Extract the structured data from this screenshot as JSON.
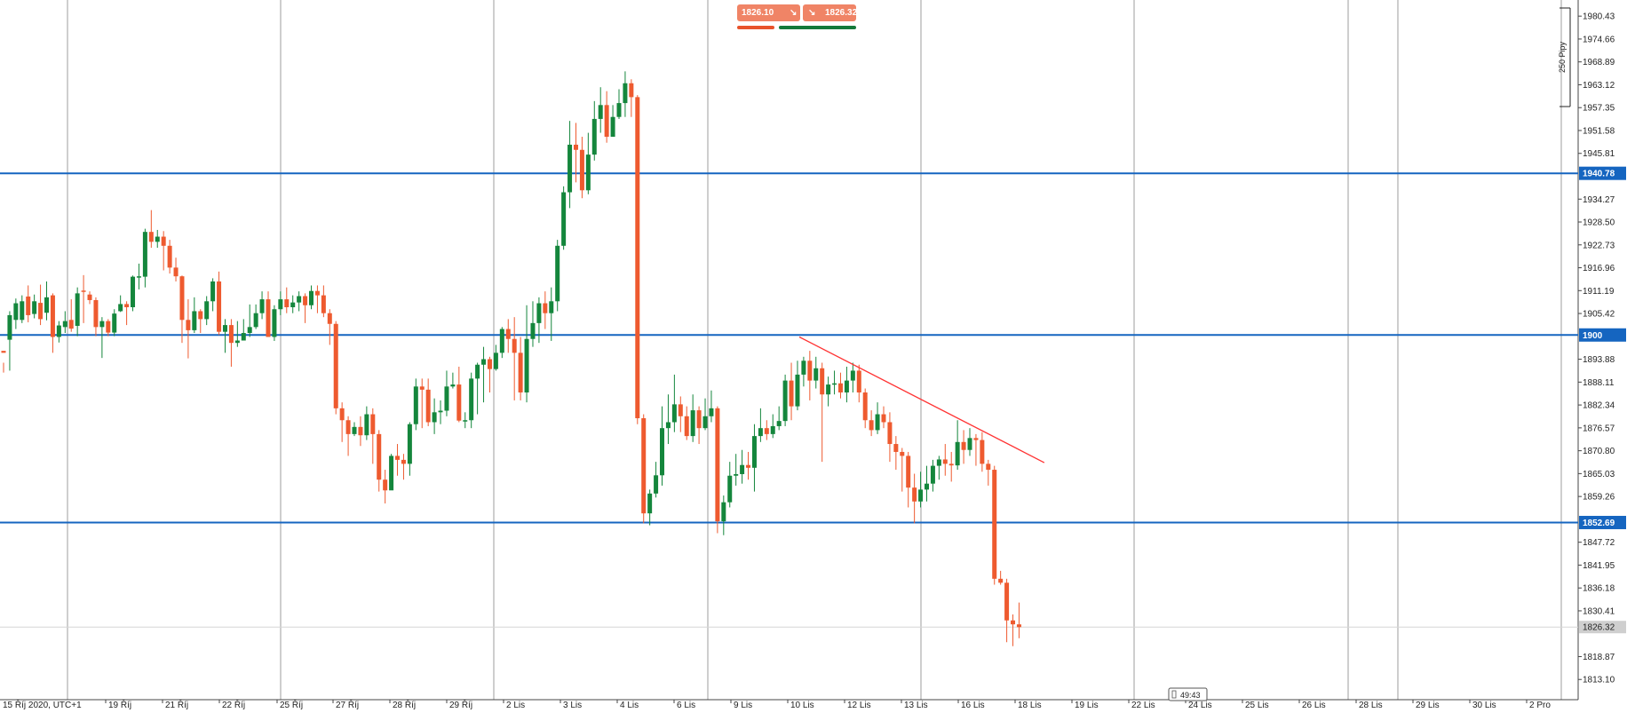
{
  "colors": {
    "bull": "#14863c",
    "bear": "#ee5a2f",
    "level_line": "#1565c0",
    "trend_line": "#ff3333",
    "grid": "#9e9e9e",
    "current_price_bg": "#cfcfcf"
  },
  "trade_panel": {
    "sell_price": "1826.10",
    "buy_price": "1826.32",
    "sell_icon": "arrow-down-right-icon",
    "buy_icon": "arrow-down-right-icon"
  },
  "timer": "49:43",
  "range_label": "250 Pipy",
  "chart_data": {
    "type": "candlestick",
    "ylim": [
      1808.0,
      1984.5
    ],
    "y_ticks": [
      "1980.43",
      "1974.66",
      "1968.89",
      "1963.12",
      "1957.35",
      "1951.58",
      "1945.81",
      "1934.27",
      "1928.50",
      "1922.73",
      "1916.96",
      "1911.19",
      "1905.42",
      "1893.88",
      "1888.11",
      "1882.34",
      "1876.57",
      "1870.80",
      "1865.03",
      "1859.26",
      "1847.72",
      "1841.95",
      "1836.18",
      "1830.41",
      "1818.87",
      "1813.10"
    ],
    "x_ticks": [
      "15 Říj 2020, UTC+1",
      "19 Říj",
      "21 Říj",
      "22 Říj",
      "25 Říj",
      "27 Říj",
      "28 Říj",
      "29 Říj",
      "2 Lis",
      "3 Lis",
      "4 Lis",
      "6 Lis",
      "9 Lis",
      "10 Lis",
      "12 Lis",
      "13 Lis",
      "16 Lis",
      "18 Lis",
      "19 Lis",
      "22 Lis",
      "24 Lis",
      "25 Lis",
      "26 Lis",
      "28 Lis",
      "29 Lis",
      "30 Lis",
      "2 Pro"
    ],
    "levels": [
      {
        "value": 1940.78,
        "label": "1940.78"
      },
      {
        "value": 1900.0,
        "label": "1900"
      },
      {
        "value": 1852.69,
        "label": "1852.69"
      }
    ],
    "current_price": {
      "value": 1826.32,
      "label": "1826.32"
    },
    "trendline": {
      "from": [
        129.3,
        1899.5
      ],
      "to": [
        169.1,
        1867.8
      ]
    },
    "candles": [
      [
        1896.0,
        1895.5,
        1893.0,
        1890.5
      ],
      [
        1898.8,
        1905.0,
        1906.0,
        1891.0
      ],
      [
        1903.8,
        1908.0,
        1909.2,
        1901.5
      ],
      [
        1903.8,
        1908.5,
        1910.0,
        1903.0
      ],
      [
        1909.7,
        1905.0,
        1912.5,
        1903.2
      ],
      [
        1905.3,
        1908.5,
        1910.2,
        1904.2
      ],
      [
        1908.1,
        1904.0,
        1912.7,
        1902.5
      ],
      [
        1905.6,
        1909.5,
        1913.5,
        1903.7
      ],
      [
        1910.0,
        1899.5,
        1910.5,
        1895.5
      ],
      [
        1899.5,
        1902.4,
        1903.5,
        1898.1
      ],
      [
        1902.0,
        1903.5,
        1906.0,
        1900.5
      ],
      [
        1903.8,
        1901.6,
        1909.0,
        1900.8
      ],
      [
        1902.3,
        1910.5,
        1912.0,
        1899.7
      ],
      [
        1911.2,
        1911.0,
        1915.1,
        1903.0
      ],
      [
        1910.2,
        1908.8,
        1911.0,
        1907.8
      ],
      [
        1908.8,
        1902.0,
        1909.5,
        1899.7
      ],
      [
        1902.0,
        1903.5,
        1904.5,
        1894.2
      ],
      [
        1903.5,
        1900.6,
        1904.0,
        1899.7
      ],
      [
        1900.6,
        1905.4,
        1906.5,
        1899.7
      ],
      [
        1906.0,
        1907.8,
        1910.0,
        1905.8
      ],
      [
        1907.8,
        1907.0,
        1908.5,
        1902.5
      ],
      [
        1907.0,
        1914.7,
        1915.0,
        1906.0
      ],
      [
        1914.5,
        1914.8,
        1918.0,
        1911.5
      ],
      [
        1914.7,
        1926.0,
        1926.8,
        1912.0
      ],
      [
        1926.0,
        1923.5,
        1931.5,
        1922.0
      ],
      [
        1923.5,
        1924.8,
        1926.5,
        1922.0
      ],
      [
        1924.8,
        1922.5,
        1926.2,
        1916.3
      ],
      [
        1922.5,
        1917.0,
        1924.0,
        1915.5
      ],
      [
        1917.0,
        1914.8,
        1919.5,
        1913.5
      ],
      [
        1914.8,
        1903.8,
        1915.0,
        1898.0
      ],
      [
        1903.8,
        1901.2,
        1909.0,
        1894.1
      ],
      [
        1901.2,
        1906.0,
        1909.5,
        1900.5
      ],
      [
        1906.0,
        1904.0,
        1906.5,
        1900.5
      ],
      [
        1904.0,
        1908.5,
        1909.8,
        1902.5
      ],
      [
        1908.5,
        1913.5,
        1914.3,
        1906.0
      ],
      [
        1913.5,
        1900.8,
        1916.0,
        1900.0
      ],
      [
        1900.8,
        1902.5,
        1904.0,
        1895.5
      ],
      [
        1902.5,
        1898.0,
        1904.0,
        1892.0
      ],
      [
        1898.0,
        1898.6,
        1903.5,
        1897.0
      ],
      [
        1898.6,
        1900.5,
        1904.0,
        1899.0
      ],
      [
        1900.5,
        1902.0,
        1907.7,
        1899.5
      ],
      [
        1902.0,
        1905.5,
        1907.7,
        1901.5
      ],
      [
        1905.5,
        1909.0,
        1911.0,
        1904.0
      ],
      [
        1909.0,
        1899.5,
        1911.0,
        1899.5
      ],
      [
        1899.5,
        1906.5,
        1907.5,
        1898.5
      ],
      [
        1906.5,
        1909.0,
        1911.0,
        1905.0
      ],
      [
        1909.0,
        1907.0,
        1912.0,
        1905.5
      ],
      [
        1907.0,
        1908.2,
        1910.0,
        1905.5
      ],
      [
        1908.2,
        1909.8,
        1911.0,
        1906.0
      ],
      [
        1909.8,
        1907.5,
        1910.5,
        1903.0
      ],
      [
        1907.5,
        1911.1,
        1912.5,
        1906.5
      ],
      [
        1911.1,
        1910.0,
        1912.5,
        1905.5
      ],
      [
        1910.0,
        1905.5,
        1912.5,
        1904.5
      ],
      [
        1905.5,
        1902.8,
        1906.5,
        1897.5
      ],
      [
        1902.8,
        1881.5,
        1903.5,
        1880.0
      ],
      [
        1881.5,
        1878.5,
        1883.0,
        1873.0
      ],
      [
        1878.5,
        1875.0,
        1879.5,
        1869.5
      ],
      [
        1875.0,
        1876.8,
        1878.0,
        1874.5
      ],
      [
        1876.8,
        1874.7,
        1879.5,
        1872.0
      ],
      [
        1874.7,
        1880.0,
        1882.0,
        1873.5
      ],
      [
        1880.0,
        1875.0,
        1881.5,
        1867.5
      ],
      [
        1875.0,
        1863.5,
        1876.0,
        1860.5
      ],
      [
        1863.5,
        1860.8,
        1866.0,
        1857.5
      ],
      [
        1860.8,
        1869.5,
        1870.0,
        1862.0
      ],
      [
        1869.5,
        1868.5,
        1872.5,
        1864.5
      ],
      [
        1868.5,
        1867.5,
        1870.0,
        1863.5
      ],
      [
        1867.5,
        1877.5,
        1878.0,
        1864.5
      ],
      [
        1877.5,
        1887.0,
        1889.0,
        1876.0
      ],
      [
        1887.0,
        1886.2,
        1889.0,
        1876.5
      ],
      [
        1886.2,
        1878.0,
        1889.0,
        1877.0
      ],
      [
        1878.0,
        1880.5,
        1884.0,
        1875.0
      ],
      [
        1880.5,
        1880.9,
        1883.5,
        1877.5
      ],
      [
        1880.9,
        1887.0,
        1891.0,
        1879.5
      ],
      [
        1887.0,
        1887.5,
        1890.5,
        1886.5
      ],
      [
        1887.5,
        1878.4,
        1892.0,
        1878.0
      ],
      [
        1878.4,
        1878.5,
        1880.5,
        1876.5
      ],
      [
        1878.5,
        1889.0,
        1890.5,
        1876.5
      ],
      [
        1889.0,
        1892.5,
        1893.0,
        1880.0
      ],
      [
        1892.5,
        1893.9,
        1897.0,
        1883.0
      ],
      [
        1893.9,
        1891.4,
        1894.5,
        1885.5
      ],
      [
        1891.4,
        1895.5,
        1897.5,
        1891.0
      ],
      [
        1895.5,
        1901.5,
        1902.0,
        1894.2
      ],
      [
        1901.5,
        1899.0,
        1904.0,
        1895.5
      ],
      [
        1899.0,
        1895.5,
        1904.5,
        1883.5
      ],
      [
        1895.5,
        1885.5,
        1899.5,
        1883.5
      ],
      [
        1885.5,
        1899.0,
        1907.5,
        1883.0
      ],
      [
        1899.0,
        1903.0,
        1908.5,
        1897.0
      ],
      [
        1903.0,
        1908.0,
        1909.5,
        1898.0
      ],
      [
        1908.0,
        1905.5,
        1911.0,
        1901.5
      ],
      [
        1905.5,
        1908.5,
        1912.0,
        1898.5
      ],
      [
        1908.5,
        1922.5,
        1924.0,
        1906.0
      ],
      [
        1922.5,
        1936.0,
        1937.5,
        1921.5
      ],
      [
        1936.0,
        1948.0,
        1954.0,
        1932.0
      ],
      [
        1948.0,
        1946.7,
        1953.5,
        1938.5
      ],
      [
        1946.7,
        1936.5,
        1950.0,
        1934.5
      ],
      [
        1936.5,
        1945.5,
        1951.0,
        1935.5
      ],
      [
        1945.5,
        1954.5,
        1959.0,
        1944.0
      ],
      [
        1954.5,
        1958.0,
        1962.5,
        1951.0
      ],
      [
        1958.0,
        1950.0,
        1961.5,
        1948.5
      ],
      [
        1950.0,
        1955.0,
        1958.0,
        1951.5
      ],
      [
        1955.0,
        1958.5,
        1962.0,
        1954.5
      ],
      [
        1958.5,
        1963.5,
        1966.5,
        1955.0
      ],
      [
        1963.5,
        1960.0,
        1964.5,
        1955.0
      ],
      [
        1960.0,
        1879.0,
        1960.5,
        1877.5
      ],
      [
        1879.0,
        1855.0,
        1880.0,
        1852.5
      ],
      [
        1855.0,
        1860.0,
        1861.0,
        1852.0
      ],
      [
        1860.0,
        1864.6,
        1868.0,
        1859.0
      ],
      [
        1864.6,
        1876.5,
        1882.0,
        1862.0
      ],
      [
        1876.5,
        1878.0,
        1885.0,
        1872.5
      ],
      [
        1878.0,
        1882.5,
        1890.0,
        1875.5
      ],
      [
        1882.5,
        1879.5,
        1884.5,
        1875.5
      ],
      [
        1879.5,
        1874.5,
        1882.0,
        1873.5
      ],
      [
        1874.5,
        1881.0,
        1885.0,
        1873.0
      ],
      [
        1881.0,
        1876.5,
        1882.0,
        1872.5
      ],
      [
        1876.5,
        1879.5,
        1884.0,
        1876.0
      ],
      [
        1879.5,
        1881.5,
        1886.0,
        1878.0
      ],
      [
        1881.5,
        1853.0,
        1882.0,
        1850.0
      ],
      [
        1853.0,
        1857.8,
        1859.5,
        1849.5
      ],
      [
        1857.8,
        1864.5,
        1868.0,
        1856.5
      ],
      [
        1864.5,
        1864.9,
        1870.0,
        1862.0
      ],
      [
        1864.9,
        1867.2,
        1871.0,
        1862.5
      ],
      [
        1867.2,
        1866.5,
        1870.5,
        1863.5
      ],
      [
        1866.5,
        1874.5,
        1877.5,
        1860.5
      ],
      [
        1874.5,
        1876.5,
        1881.5,
        1873.0
      ],
      [
        1876.5,
        1875.0,
        1878.5,
        1873.5
      ],
      [
        1875.0,
        1877.0,
        1880.0,
        1874.0
      ],
      [
        1877.0,
        1878.3,
        1882.0,
        1876.0
      ],
      [
        1878.3,
        1888.5,
        1890.0,
        1877.0
      ],
      [
        1888.5,
        1882.0,
        1893.0,
        1878.5
      ],
      [
        1882.0,
        1890.0,
        1893.5,
        1881.0
      ],
      [
        1890.0,
        1893.5,
        1894.5,
        1887.0
      ],
      [
        1893.5,
        1888.5,
        1896.0,
        1883.5
      ],
      [
        1888.5,
        1891.6,
        1894.5,
        1886.5
      ],
      [
        1891.6,
        1885.0,
        1893.0,
        1868.0
      ],
      [
        1885.0,
        1887.5,
        1889.5,
        1882.0
      ],
      [
        1887.5,
        1887.8,
        1891.0,
        1885.0
      ],
      [
        1887.8,
        1885.5,
        1890.5,
        1884.0
      ],
      [
        1885.5,
        1888.5,
        1892.0,
        1883.0
      ],
      [
        1888.5,
        1891.0,
        1893.0,
        1885.5
      ],
      [
        1891.0,
        1885.5,
        1892.5,
        1883.0
      ],
      [
        1885.5,
        1878.5,
        1886.5,
        1876.5
      ],
      [
        1878.5,
        1876.0,
        1881.0,
        1874.5
      ],
      [
        1876.0,
        1880.0,
        1883.0,
        1875.0
      ],
      [
        1880.0,
        1878.0,
        1882.0,
        1876.5
      ],
      [
        1878.0,
        1872.5,
        1880.5,
        1868.0
      ],
      [
        1872.5,
        1870.5,
        1874.5,
        1866.0
      ],
      [
        1870.5,
        1869.5,
        1871.5,
        1860.5
      ],
      [
        1869.5,
        1861.5,
        1870.5,
        1856.5
      ],
      [
        1861.5,
        1858.0,
        1865.0,
        1852.5
      ],
      [
        1858.0,
        1861.0,
        1865.5,
        1856.5
      ],
      [
        1861.0,
        1862.5,
        1867.0,
        1858.0
      ],
      [
        1862.5,
        1867.0,
        1868.5,
        1860.5
      ],
      [
        1867.0,
        1868.6,
        1869.5,
        1863.5
      ],
      [
        1868.6,
        1867.5,
        1872.5,
        1864.5
      ],
      [
        1867.5,
        1867.1,
        1870.5,
        1863.0
      ],
      [
        1867.1,
        1873.0,
        1878.5,
        1866.0
      ],
      [
        1873.0,
        1871.0,
        1876.0,
        1867.5
      ],
      [
        1871.0,
        1874.0,
        1876.5,
        1869.5
      ],
      [
        1874.0,
        1873.5,
        1875.0,
        1867.0
      ],
      [
        1873.5,
        1867.5,
        1875.5,
        1865.5
      ],
      [
        1867.5,
        1866.0,
        1868.5,
        1862.0
      ],
      [
        1866.0,
        1838.5,
        1867.0,
        1837.0
      ],
      [
        1838.5,
        1837.5,
        1840.5,
        1837.0
      ],
      [
        1837.5,
        1828.0,
        1838.5,
        1822.5
      ],
      [
        1828.0,
        1827.0,
        1829.5,
        1821.5
      ],
      [
        1827.0,
        1826.3,
        1832.5,
        1823.5
      ]
    ]
  }
}
